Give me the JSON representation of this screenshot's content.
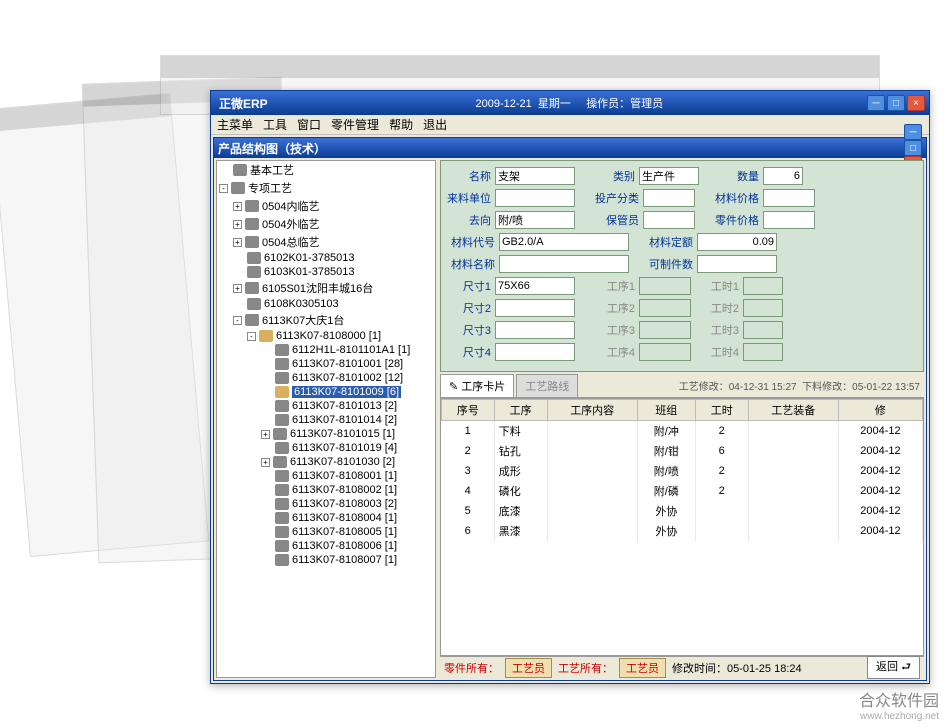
{
  "outer": {
    "title": "正微ERP",
    "date": "2009-12-21",
    "weekday": "星期一",
    "operator_label": "操作员：管理员",
    "menu": [
      "主菜单",
      "工具",
      "窗口",
      "零件管理",
      "帮助",
      "退出"
    ]
  },
  "inner": {
    "title": "产品结构图（技术）"
  },
  "tree": [
    {
      "ind": 0,
      "exp": "",
      "ico": "n",
      "label": "基本工艺"
    },
    {
      "ind": 0,
      "exp": "-",
      "ico": "n",
      "label": "专项工艺"
    },
    {
      "ind": 1,
      "exp": "+",
      "ico": "n",
      "label": "0504内临艺"
    },
    {
      "ind": 1,
      "exp": "+",
      "ico": "n",
      "label": "0504外临艺"
    },
    {
      "ind": 1,
      "exp": "+",
      "ico": "n",
      "label": "0504总临艺"
    },
    {
      "ind": 1,
      "exp": "",
      "ico": "n",
      "label": "6102K01-3785013"
    },
    {
      "ind": 1,
      "exp": "",
      "ico": "n",
      "label": "6103K01-3785013"
    },
    {
      "ind": 1,
      "exp": "+",
      "ico": "n",
      "label": "6105S01沈阳丰城16台"
    },
    {
      "ind": 1,
      "exp": "",
      "ico": "n",
      "label": "6108K0305103"
    },
    {
      "ind": 1,
      "exp": "-",
      "ico": "n",
      "label": "6113K07大庆1台"
    },
    {
      "ind": 2,
      "exp": "-",
      "ico": "f",
      "label": "6113K07-8108000  [1]"
    },
    {
      "ind": 3,
      "exp": "",
      "ico": "n",
      "label": "6112H1L-8101101A1  [1]"
    },
    {
      "ind": 3,
      "exp": "",
      "ico": "n",
      "label": "6113K07-8101001  [28]"
    },
    {
      "ind": 3,
      "exp": "",
      "ico": "n",
      "label": "6113K07-8101002  [12]"
    },
    {
      "ind": 3,
      "exp": "",
      "ico": "f",
      "label": "6113K07-8101009  [6]",
      "sel": true
    },
    {
      "ind": 3,
      "exp": "",
      "ico": "n",
      "label": "6113K07-8101013  [2]"
    },
    {
      "ind": 3,
      "exp": "",
      "ico": "n",
      "label": "6113K07-8101014  [2]"
    },
    {
      "ind": 3,
      "exp": "+",
      "ico": "n",
      "label": "6113K07-8101015  [1]"
    },
    {
      "ind": 3,
      "exp": "",
      "ico": "n",
      "label": "6113K07-8101019  [4]"
    },
    {
      "ind": 3,
      "exp": "+",
      "ico": "n",
      "label": "6113K07-8101030  [2]"
    },
    {
      "ind": 3,
      "exp": "",
      "ico": "n",
      "label": "6113K07-8108001  [1]"
    },
    {
      "ind": 3,
      "exp": "",
      "ico": "n",
      "label": "6113K07-8108002  [1]"
    },
    {
      "ind": 3,
      "exp": "",
      "ico": "n",
      "label": "6113K07-8108003  [2]"
    },
    {
      "ind": 3,
      "exp": "",
      "ico": "n",
      "label": "6113K07-8108004  [1]"
    },
    {
      "ind": 3,
      "exp": "",
      "ico": "n",
      "label": "6113K07-8108005  [1]"
    },
    {
      "ind": 3,
      "exp": "",
      "ico": "n",
      "label": "6113K07-8108006  [1]"
    },
    {
      "ind": 3,
      "exp": "",
      "ico": "n",
      "label": "6113K07-8108007  [1]"
    }
  ],
  "form": {
    "labels": {
      "name": "名称",
      "category": "类别",
      "qty": "数量",
      "mat_unit": "来料单位",
      "prod_class": "投产分类",
      "mat_price": "材料价格",
      "goto": "去向",
      "keeper": "保管员",
      "part_price": "零件价格",
      "mat_code": "材料代号",
      "mat_quota": "材料定额",
      "mat_name": "材料名称",
      "can_make": "可制件数",
      "dim1": "尺寸1",
      "dim2": "尺寸2",
      "dim3": "尺寸3",
      "dim4": "尺寸4",
      "proc1": "工序1",
      "proc2": "工序2",
      "proc3": "工序3",
      "proc4": "工序4",
      "wt1": "工时1",
      "wt2": "工时2",
      "wt3": "工时3",
      "wt4": "工时4"
    },
    "values": {
      "name": "支架",
      "category": "生产件",
      "qty": "6",
      "mat_unit": "",
      "prod_class": "",
      "mat_price": "",
      "goto": "附/喷",
      "keeper": "",
      "part_price": "",
      "mat_code": "GB2.0/A",
      "mat_quota": "0.09",
      "mat_name": "",
      "can_make": "",
      "dim1": "75X66",
      "dim2": "",
      "dim3": "",
      "dim4": ""
    }
  },
  "tabs": {
    "active": "工序卡片",
    "inactive": "工艺路线",
    "info1": "工艺修改：04-12-31 15:27",
    "info2": "下料修改：05-01-22 13:57"
  },
  "grid": {
    "cols": [
      "序号",
      "工序",
      "工序内容",
      "班组",
      "工时",
      "工艺装备",
      "修"
    ],
    "rows": [
      [
        "1",
        "下料",
        "",
        "附/冲",
        "2",
        "",
        "2004-12"
      ],
      [
        "2",
        "钻孔",
        "",
        "附/钳",
        "6",
        "",
        "2004-12"
      ],
      [
        "3",
        "成形",
        "",
        "附/喷",
        "2",
        "",
        "2004-12"
      ],
      [
        "4",
        "磷化",
        "",
        "附/磷",
        "2",
        "",
        "2004-12"
      ],
      [
        "5",
        "底漆",
        "",
        "外协",
        "",
        "",
        "2004-12"
      ],
      [
        "6",
        "黑漆",
        "",
        "外协",
        "",
        "",
        "2004-12"
      ]
    ]
  },
  "status": {
    "part_owner": "零件所有：",
    "tech_btn1": "工艺员",
    "tech_owner": "工艺所有：",
    "tech_btn2": "工艺员",
    "mod_time": "修改时间：05-01-25 18:24",
    "return": "返回"
  },
  "watermark": {
    "main": "合众软件园",
    "sub": "www.hezhong.net"
  },
  "colors": {
    "title_grad_a": "#3a6fd8",
    "title_grad_b": "#0a3d91",
    "form_bg": "#d4e4d4"
  }
}
